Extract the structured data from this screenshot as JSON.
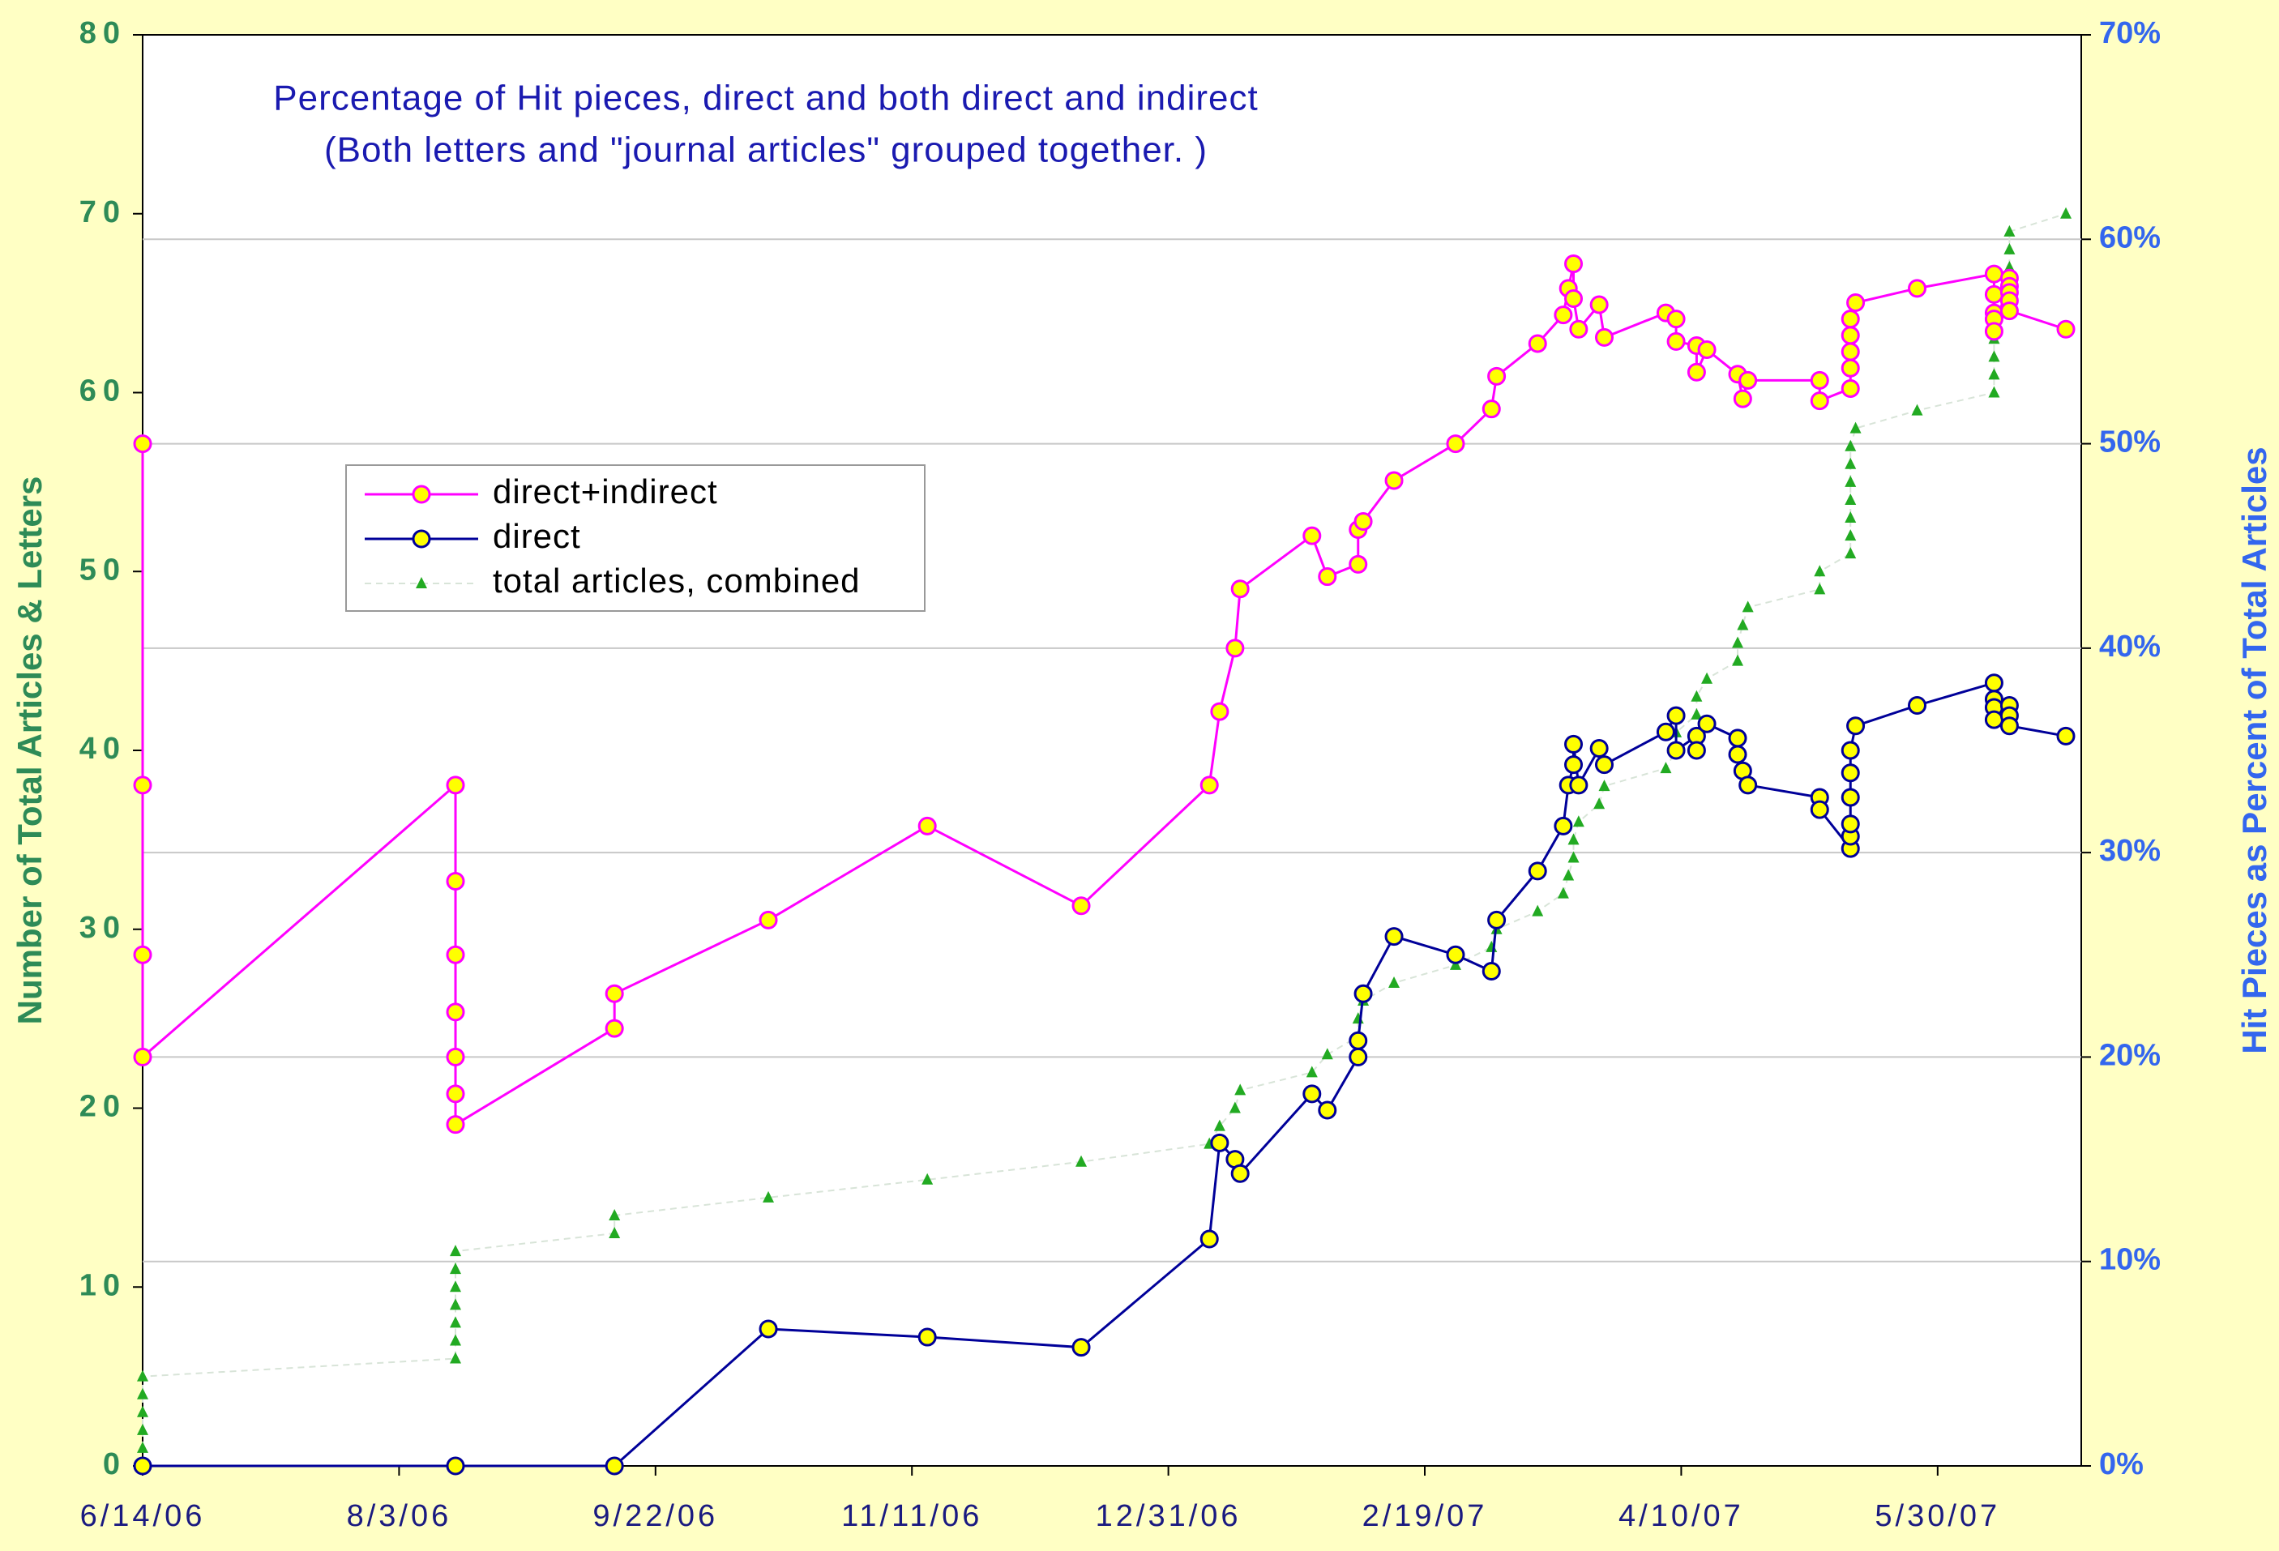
{
  "chart_data": {
    "type": "line",
    "title": "Percentage of Hit pieces, direct and both direct and indirect",
    "subtitle": "(Both letters and \"journal articles\" grouped together.  )",
    "y_label": "Number of Total Articles & Letters",
    "y2_label": "Hit Pieces as Percent of Total Articles",
    "xlim": [
      "6/14/06",
      "6/27/07"
    ],
    "xticks": [
      "6/14/06",
      "8/3/06",
      "9/22/06",
      "11/11/06",
      "12/31/06",
      "2/19/07",
      "4/10/07",
      "5/30/07"
    ],
    "ylim": [
      0,
      80
    ],
    "yticks": [
      0,
      10,
      20,
      30,
      40,
      50,
      60,
      70,
      80
    ],
    "y2lim": [
      0,
      70
    ],
    "y2ticks": [
      {
        "value": 0,
        "label": "0%"
      },
      {
        "value": 10,
        "label": "10%"
      },
      {
        "value": 20,
        "label": "20%"
      },
      {
        "value": 30,
        "label": "30%"
      },
      {
        "value": 40,
        "label": "40%"
      },
      {
        "value": 50,
        "label": "50%"
      },
      {
        "value": 60,
        "label": "60%"
      },
      {
        "value": 70,
        "label": "70%"
      }
    ],
    "grid": "y2",
    "series": [
      {
        "name": "direct+indirect",
        "color": "#ff00ff",
        "marker": "circle",
        "marker_color": "#ffff00",
        "axis": "y2",
        "x": [
          "6/14/06",
          "6/14/06",
          "6/14/06",
          "6/14/06",
          "8/14/06",
          "8/14/06",
          "8/14/06",
          "8/14/06",
          "8/14/06",
          "8/14/06",
          "8/14/06",
          "9/14/06",
          "9/14/06",
          "10/14/06",
          "11/14/06",
          "12/14/06",
          "1/8/07",
          "1/10/07",
          "1/13/07",
          "1/14/07",
          "1/28/07",
          "1/31/07",
          "2/6/07",
          "2/6/07",
          "2/7/07",
          "2/13/07",
          "2/25/07",
          "3/4/07",
          "3/5/07",
          "3/13/07",
          "3/18/07",
          "3/19/07",
          "3/20/07",
          "3/20/07",
          "3/21/07",
          "3/25/07",
          "3/26/07",
          "4/7/07",
          "4/9/07",
          "4/9/07",
          "4/13/07",
          "4/13/07",
          "4/15/07",
          "4/21/07",
          "4/22/07",
          "4/23/07",
          "5/7/07",
          "5/7/07",
          "5/13/07",
          "5/13/07",
          "5/13/07",
          "5/13/07",
          "5/13/07",
          "5/14/07",
          "5/26/07",
          "6/10/07",
          "6/10/07",
          "6/10/07",
          "6/10/07",
          "6/10/07",
          "6/13/07",
          "6/13/07",
          "6/13/07",
          "6/13/07",
          "6/13/07",
          "6/24/07"
        ],
        "values": [
          50.0,
          33.3,
          25.0,
          20.0,
          33.3,
          28.6,
          25.0,
          22.2,
          20.0,
          18.2,
          16.7,
          21.4,
          23.1,
          26.7,
          31.3,
          27.4,
          33.3,
          36.9,
          40.0,
          42.9,
          45.5,
          43.5,
          44.1,
          45.8,
          46.2,
          48.2,
          50.0,
          51.7,
          53.3,
          54.9,
          56.3,
          57.6,
          58.8,
          57.1,
          55.6,
          56.8,
          55.2,
          56.4,
          56.1,
          55.0,
          54.8,
          53.5,
          54.6,
          53.4,
          52.2,
          53.1,
          53.1,
          52.1,
          52.7,
          53.7,
          54.5,
          55.3,
          56.1,
          56.9,
          57.6,
          58.3,
          57.3,
          56.4,
          56.1,
          55.5,
          58.1,
          57.7,
          57.4,
          57.0,
          56.5,
          55.6
        ]
      },
      {
        "name": "direct",
        "color": "#000099",
        "marker": "circle",
        "marker_color": "#ffff00",
        "axis": "y2",
        "x": [
          "6/14/06",
          "8/14/06",
          "9/14/06",
          "10/14/06",
          "11/14/06",
          "12/14/06",
          "1/8/07",
          "1/10/07",
          "1/13/07",
          "1/14/07",
          "1/28/07",
          "1/31/07",
          "2/6/07",
          "2/6/07",
          "2/7/07",
          "2/13/07",
          "2/25/07",
          "3/4/07",
          "3/5/07",
          "3/13/07",
          "3/18/07",
          "3/19/07",
          "3/20/07",
          "3/20/07",
          "3/21/07",
          "3/25/07",
          "3/26/07",
          "4/7/07",
          "4/9/07",
          "4/9/07",
          "4/13/07",
          "4/13/07",
          "4/15/07",
          "4/21/07",
          "4/21/07",
          "4/22/07",
          "4/23/07",
          "5/7/07",
          "5/7/07",
          "5/13/07",
          "5/13/07",
          "5/13/07",
          "5/13/07",
          "5/13/07",
          "5/13/07",
          "5/14/07",
          "5/26/07",
          "6/10/07",
          "6/10/07",
          "6/10/07",
          "6/10/07",
          "6/13/07",
          "6/13/07",
          "6/13/07",
          "6/24/07"
        ],
        "values": [
          0,
          0,
          0,
          6.7,
          6.3,
          5.8,
          11.1,
          15.8,
          15.0,
          14.3,
          18.2,
          17.4,
          20.0,
          20.8,
          23.1,
          25.9,
          25.0,
          24.2,
          26.7,
          29.1,
          31.3,
          33.3,
          34.3,
          35.3,
          33.3,
          35.1,
          34.3,
          35.9,
          36.7,
          35.0,
          35.7,
          35.0,
          36.3,
          35.6,
          34.8,
          34.0,
          33.3,
          32.7,
          32.1,
          30.2,
          30.8,
          31.4,
          32.7,
          33.9,
          35.0,
          36.2,
          37.2,
          38.3,
          37.5,
          37.1,
          36.5,
          37.2,
          36.7,
          36.2,
          35.7
        ]
      },
      {
        "name": "total articles, combined",
        "color": "#22aa22",
        "marker": "triangle",
        "line_color": "#d8e4d8",
        "line_style": "dashed",
        "x": [
          "6/14/06",
          "6/14/06",
          "6/14/06",
          "6/14/06",
          "6/14/06",
          "8/14/06",
          "8/14/06",
          "8/14/06",
          "8/14/06",
          "8/14/06",
          "8/14/06",
          "8/14/06",
          "9/14/06",
          "9/14/06",
          "10/14/06",
          "11/14/06",
          "12/14/06",
          "1/8/07",
          "1/10/07",
          "1/13/07",
          "1/14/07",
          "1/28/07",
          "1/31/07",
          "2/6/07",
          "2/6/07",
          "2/7/07",
          "2/13/07",
          "2/25/07",
          "3/4/07",
          "3/5/07",
          "3/13/07",
          "3/18/07",
          "3/19/07",
          "3/20/07",
          "3/20/07",
          "3/21/07",
          "3/25/07",
          "3/26/07",
          "4/7/07",
          "4/9/07",
          "4/9/07",
          "4/13/07",
          "4/13/07",
          "4/15/07",
          "4/21/07",
          "4/21/07",
          "4/22/07",
          "4/23/07",
          "5/7/07",
          "5/7/07",
          "5/13/07",
          "5/13/07",
          "5/13/07",
          "5/13/07",
          "5/13/07",
          "5/13/07",
          "5/13/07",
          "5/14/07",
          "5/26/07",
          "6/10/07",
          "6/10/07",
          "6/10/07",
          "6/10/07",
          "6/10/07",
          "6/13/07",
          "6/13/07",
          "6/13/07",
          "6/13/07",
          "6/13/07",
          "6/24/07"
        ],
        "values": [
          1,
          2,
          3,
          4,
          5,
          6,
          7,
          8,
          9,
          10,
          11,
          12,
          13,
          14,
          15,
          16,
          17,
          18,
          19,
          20,
          21,
          22,
          23,
          24,
          25,
          26,
          27,
          28,
          29,
          30,
          31,
          32,
          33,
          34,
          35,
          36,
          37,
          38,
          39,
          40,
          41,
          42,
          43,
          44,
          45,
          46,
          47,
          48,
          49,
          50,
          51,
          52,
          53,
          54,
          55,
          56,
          57,
          58,
          59,
          60,
          61,
          62,
          63,
          64,
          65,
          66,
          67,
          68,
          69,
          70
        ]
      }
    ]
  }
}
